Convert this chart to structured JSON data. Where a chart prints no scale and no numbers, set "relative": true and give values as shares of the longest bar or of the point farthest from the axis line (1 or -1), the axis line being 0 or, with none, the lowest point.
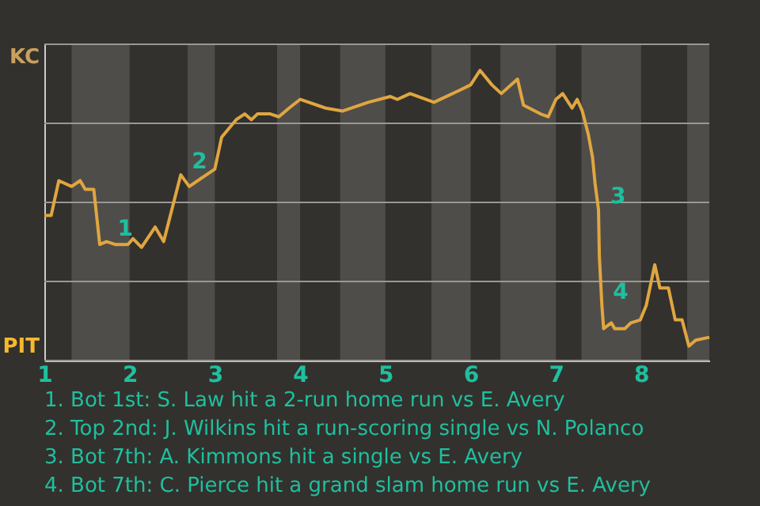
{
  "chart_data": {
    "type": "line",
    "relative": true,
    "series": [
      {
        "color": "#e0a640",
        "x": [
          1.0,
          1.08,
          1.17,
          1.32,
          1.42,
          1.48,
          1.58,
          1.65,
          1.73,
          1.83,
          1.98,
          2.04,
          2.14,
          2.3,
          2.4,
          2.6,
          2.7,
          3.0,
          3.08,
          3.25,
          3.35,
          3.43,
          3.5,
          3.65,
          3.75,
          3.87,
          4.0,
          4.3,
          4.5,
          4.8,
          5.06,
          5.14,
          5.29,
          5.57,
          5.86,
          6.0,
          6.11,
          6.25,
          6.36,
          6.55,
          6.62,
          6.82,
          6.91,
          7.0,
          7.08,
          7.19,
          7.25,
          7.31,
          7.38,
          7.43,
          7.46,
          7.5,
          7.51,
          7.54,
          7.56,
          7.65,
          7.69,
          7.81,
          7.88,
          7.99,
          8.06,
          8.16,
          8.22,
          8.32,
          8.4,
          8.48,
          8.56,
          8.64,
          8.8
        ],
        "values": [
          0.5,
          0.5,
          0.62,
          0.6,
          0.62,
          0.59,
          0.59,
          0.4,
          0.41,
          0.4,
          0.4,
          0.42,
          0.39,
          0.46,
          0.41,
          0.64,
          0.6,
          0.66,
          0.77,
          0.83,
          0.85,
          0.83,
          0.85,
          0.85,
          0.84,
          0.87,
          0.9,
          0.87,
          0.86,
          0.89,
          0.91,
          0.9,
          0.92,
          0.89,
          0.93,
          0.95,
          1,
          0.95,
          0.92,
          0.97,
          0.88,
          0.85,
          0.84,
          0.9,
          0.92,
          0.87,
          0.9,
          0.86,
          0.78,
          0.7,
          0.61,
          0.52,
          0.36,
          0.19,
          0.11,
          0.13,
          0.11,
          0.11,
          0.13,
          0.14,
          0.19,
          0.33,
          0.25,
          0.25,
          0.14,
          0.14,
          0.05,
          0.07,
          0.08
        ]
      }
    ],
    "xlim": [
      1,
      8.8
    ],
    "xticks": [
      1,
      2,
      3,
      4,
      5,
      6,
      7,
      8
    ],
    "grid": "y",
    "bands": [
      {
        "axis": "x",
        "from": 1.32,
        "to": 2,
        "color": "#4f4d4a"
      },
      {
        "axis": "x",
        "from": 2.68,
        "to": 3,
        "color": "#4f4d4a"
      },
      {
        "axis": "x",
        "from": 3.73,
        "to": 4,
        "color": "#4f4d4a"
      },
      {
        "axis": "x",
        "from": 4.47,
        "to": 5,
        "color": "#4f4d4a"
      },
      {
        "axis": "x",
        "from": 5.54,
        "to": 6,
        "color": "#4f4d4a"
      },
      {
        "axis": "x",
        "from": 6.35,
        "to": 7,
        "color": "#4f4d4a"
      },
      {
        "axis": "x",
        "from": 7.3,
        "to": 8,
        "color": "#4f4d4a"
      },
      {
        "axis": "x",
        "from": 8.54,
        "to": 8.8,
        "color": "#4f4d4a"
      }
    ],
    "annotations": [
      {
        "text": "1",
        "x": 1.73,
        "y": 0.41
      },
      {
        "text": "2",
        "x": 2.6,
        "y": 0.64
      },
      {
        "text": "3",
        "x": 7.51,
        "y": 0.52
      },
      {
        "text": "4",
        "x": 7.54,
        "y": 0.19
      },
      "KC",
      "PIT",
      "1. Bot 1st: S. Law hit a 2-run home run vs E. Avery",
      "2. Top 2nd: J. Wilkins hit a run-scoring single vs N. Polanco",
      "3. Bot 7th: A. Kimmons hit a single vs E. Avery",
      "4. Bot 7th: C. Pierce hit a grand slam home run vs E. Avery"
    ]
  }
}
